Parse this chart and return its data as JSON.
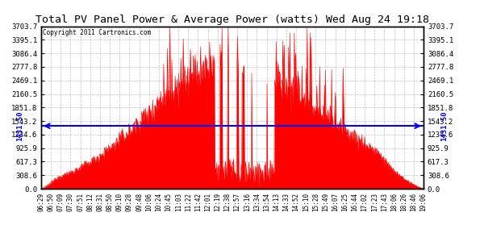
{
  "title": "Total PV Panel Power & Average Power (watts) Wed Aug 24 19:18",
  "copyright": "Copyright 2011 Cartronics.com",
  "yticks": [
    0.0,
    308.6,
    617.3,
    925.9,
    1234.6,
    1543.2,
    1851.8,
    2160.5,
    2469.1,
    2777.8,
    3086.4,
    3395.1,
    3703.7
  ],
  "ymax": 3703.7,
  "ymin": 0.0,
  "average_power": 1431.5,
  "fill_color": "#FF0000",
  "line_color": "#FF0000",
  "avg_line_color": "#0000FF",
  "background_color": "#FFFFFF",
  "grid_color": "#999999",
  "xtick_labels": [
    "06:29",
    "06:50",
    "07:09",
    "07:30",
    "07:51",
    "08:12",
    "08:31",
    "08:50",
    "09:10",
    "09:28",
    "09:48",
    "10:06",
    "10:24",
    "10:45",
    "11:03",
    "11:22",
    "11:42",
    "12:01",
    "12:19",
    "12:38",
    "12:57",
    "13:16",
    "13:34",
    "13:54",
    "14:13",
    "14:33",
    "14:52",
    "15:10",
    "15:28",
    "15:49",
    "16:07",
    "16:25",
    "16:44",
    "17:02",
    "17:23",
    "17:43",
    "18:06",
    "18:26",
    "18:46",
    "19:06"
  ]
}
